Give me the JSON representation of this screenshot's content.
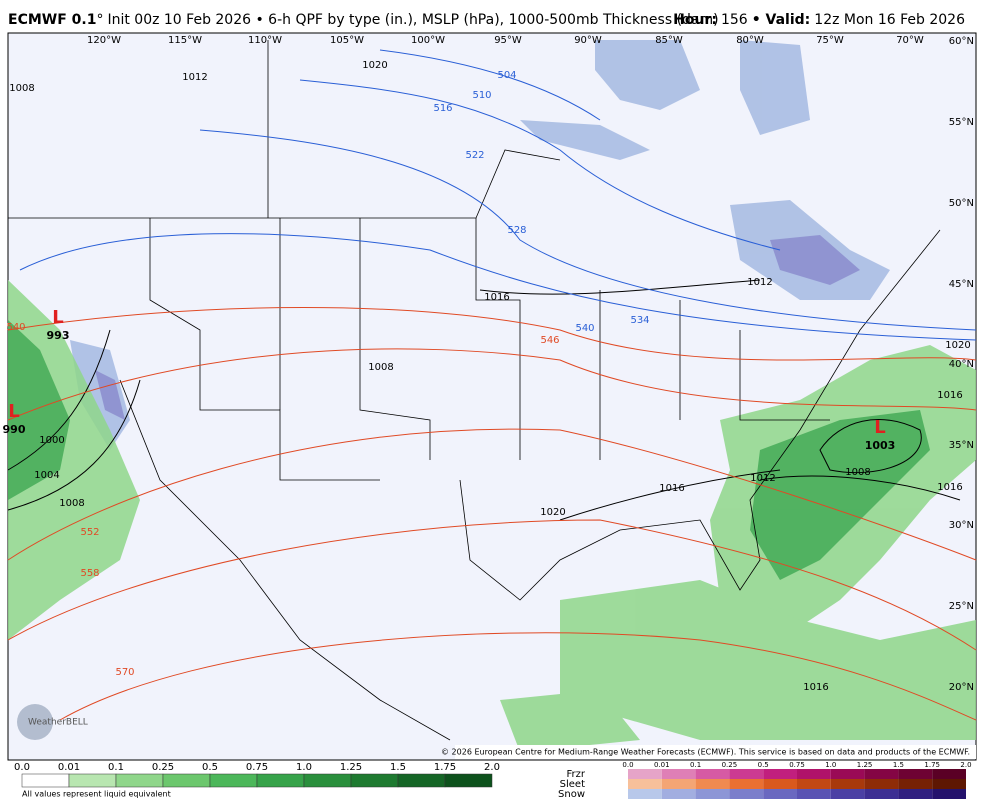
{
  "header": {
    "model": "ECMWF 0.1",
    "degree": "°",
    "description": "Init 00z 10 Feb 2026 • 6-h QPF by type (in.), MSLP (hPa), 1000-500mb Thickness (dam)",
    "hour_label": "Hour:",
    "hour": "156",
    "valid_label": "• Valid:",
    "valid": "12z Mon 16 Feb 2026"
  },
  "map": {
    "longitudes": [
      "120°W",
      "115°W",
      "110°W",
      "105°W",
      "100°W",
      "95°W",
      "90°W",
      "85°W",
      "80°W",
      "75°W",
      "70°W"
    ],
    "latitudes": [
      "60°N",
      "55°N",
      "50°N",
      "45°N",
      "40°N",
      "35°N",
      "30°N",
      "25°N",
      "20°N"
    ],
    "pressure_labels": [
      "1012",
      "1020",
      "1008",
      "1016",
      "1008",
      "1000",
      "1004",
      "1008",
      "1016",
      "1012",
      "1008",
      "1016",
      "1016",
      "1020",
      "1020",
      "1016",
      "1012"
    ],
    "thickness_labels": [
      "504",
      "510",
      "516",
      "522",
      "528",
      "534",
      "540"
    ],
    "warm_thickness_labels": [
      "540",
      "546",
      "552",
      "558",
      "570"
    ],
    "lows": [
      {
        "symbol": "L",
        "pressure": "993"
      },
      {
        "symbol": "L",
        "pressure": "990"
      },
      {
        "symbol": "L",
        "pressure": "1003"
      }
    ],
    "logo": "WeatherBELL",
    "copyright": "© 2026 European Centre for Medium-Range Weather Forecasts (ECMWF). This service is based on data and products of the ECMWF."
  },
  "legend": {
    "qpf_scale": [
      "0.0",
      "0.01",
      "0.1",
      "0.25",
      "0.5",
      "0.75",
      "1.0",
      "1.25",
      "1.5",
      "1.75",
      "2.0"
    ],
    "note": "All values represent liquid equivalent",
    "types": [
      "Frzr",
      "Sleet",
      "Snow"
    ],
    "type_scale": [
      "0.0",
      "0.01",
      "0.1",
      "0.25",
      "0.5",
      "0.75",
      "1.0",
      "1.25",
      "1.5",
      "1.75",
      "2.0"
    ]
  }
}
